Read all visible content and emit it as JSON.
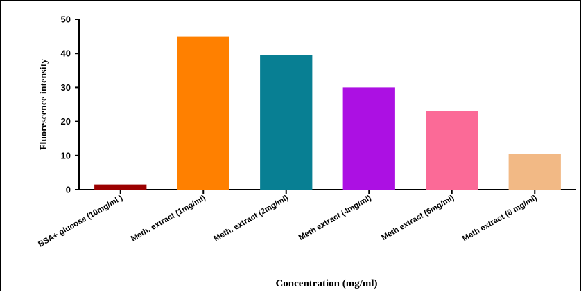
{
  "chart_data": {
    "type": "bar",
    "title": "",
    "xlabel": "Concentration (mg/ml)",
    "ylabel": "Fluorescence intensity",
    "ylim": [
      0,
      50
    ],
    "yticks": [
      0,
      10,
      20,
      30,
      40,
      50
    ],
    "categories": [
      "BSA+ glucose (10mg/ml )",
      "Meth. extract (1mg/ml)",
      "Meth. extract (2mg/ml)",
      "Meth extract (4mg/ml)",
      "Meth extract (6mg/ml)",
      "Meth extract (8 mg/ml)"
    ],
    "values": [
      1.5,
      45,
      39.5,
      30,
      23,
      10.5
    ],
    "colors": [
      "#9b0000",
      "#ff8000",
      "#087f93",
      "#ac10e3",
      "#fb6a97",
      "#f2b985"
    ],
    "grid": false,
    "legend": "none"
  }
}
